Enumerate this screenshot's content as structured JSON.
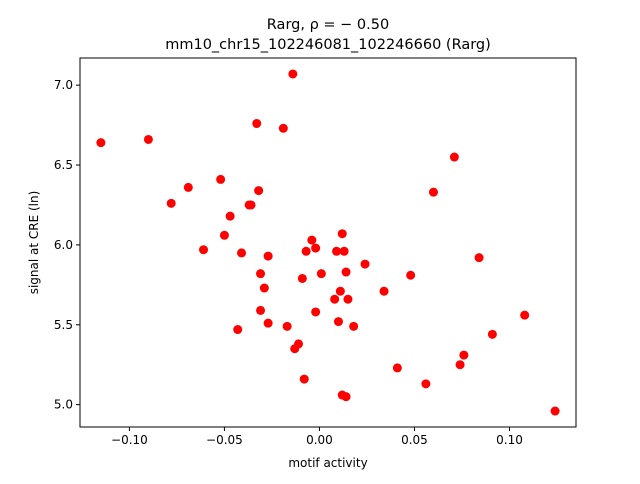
{
  "chart_data": {
    "type": "scatter",
    "title_line1": "Rarg, ρ = − 0.50",
    "title_line2": "mm10_chr15_102246081_102246660 (Rarg)",
    "xlabel": "motif activity",
    "ylabel": "signal at CRE (ln)",
    "xlim": [
      -0.126,
      0.135
    ],
    "ylim": [
      4.86,
      7.17
    ],
    "xticks": [
      -0.1,
      -0.05,
      0.0,
      0.05,
      0.1
    ],
    "xtick_labels": [
      "−0.10",
      "−0.05",
      "0.00",
      "0.05",
      "0.10"
    ],
    "yticks": [
      5.0,
      5.5,
      6.0,
      6.5,
      7.0
    ],
    "ytick_labels": [
      "5.0",
      "5.5",
      "6.0",
      "6.5",
      "7.0"
    ],
    "grid": false,
    "marker_color": "#ff0000",
    "points": [
      {
        "x": -0.115,
        "y": 6.64
      },
      {
        "x": -0.09,
        "y": 6.66
      },
      {
        "x": -0.078,
        "y": 6.26
      },
      {
        "x": -0.069,
        "y": 6.36
      },
      {
        "x": -0.061,
        "y": 5.97
      },
      {
        "x": -0.052,
        "y": 6.41
      },
      {
        "x": -0.05,
        "y": 6.06
      },
      {
        "x": -0.047,
        "y": 6.18
      },
      {
        "x": -0.043,
        "y": 5.47
      },
      {
        "x": -0.041,
        "y": 5.95
      },
      {
        "x": -0.037,
        "y": 6.25
      },
      {
        "x": -0.036,
        "y": 6.25
      },
      {
        "x": -0.033,
        "y": 6.76
      },
      {
        "x": -0.032,
        "y": 6.34
      },
      {
        "x": -0.031,
        "y": 5.82
      },
      {
        "x": -0.031,
        "y": 5.59
      },
      {
        "x": -0.029,
        "y": 5.73
      },
      {
        "x": -0.027,
        "y": 5.93
      },
      {
        "x": -0.027,
        "y": 5.51
      },
      {
        "x": -0.019,
        "y": 6.73
      },
      {
        "x": -0.017,
        "y": 5.49
      },
      {
        "x": -0.014,
        "y": 7.07
      },
      {
        "x": -0.013,
        "y": 5.35
      },
      {
        "x": -0.011,
        "y": 5.38
      },
      {
        "x": -0.009,
        "y": 5.79
      },
      {
        "x": -0.008,
        "y": 5.16
      },
      {
        "x": -0.007,
        "y": 5.96
      },
      {
        "x": -0.004,
        "y": 6.03
      },
      {
        "x": -0.002,
        "y": 5.98
      },
      {
        "x": -0.002,
        "y": 5.58
      },
      {
        "x": 0.001,
        "y": 5.82
      },
      {
        "x": 0.008,
        "y": 5.66
      },
      {
        "x": 0.009,
        "y": 5.96
      },
      {
        "x": 0.01,
        "y": 5.52
      },
      {
        "x": 0.011,
        "y": 5.71
      },
      {
        "x": 0.012,
        "y": 6.07
      },
      {
        "x": 0.012,
        "y": 5.06
      },
      {
        "x": 0.013,
        "y": 5.96
      },
      {
        "x": 0.014,
        "y": 5.83
      },
      {
        "x": 0.014,
        "y": 5.05
      },
      {
        "x": 0.015,
        "y": 5.66
      },
      {
        "x": 0.018,
        "y": 5.49
      },
      {
        "x": 0.024,
        "y": 5.88
      },
      {
        "x": 0.034,
        "y": 5.71
      },
      {
        "x": 0.041,
        "y": 5.23
      },
      {
        "x": 0.048,
        "y": 5.81
      },
      {
        "x": 0.056,
        "y": 5.13
      },
      {
        "x": 0.06,
        "y": 6.33
      },
      {
        "x": 0.071,
        "y": 6.55
      },
      {
        "x": 0.074,
        "y": 5.25
      },
      {
        "x": 0.076,
        "y": 5.31
      },
      {
        "x": 0.084,
        "y": 5.92
      },
      {
        "x": 0.091,
        "y": 5.44
      },
      {
        "x": 0.108,
        "y": 5.56
      },
      {
        "x": 0.124,
        "y": 4.96
      }
    ]
  }
}
